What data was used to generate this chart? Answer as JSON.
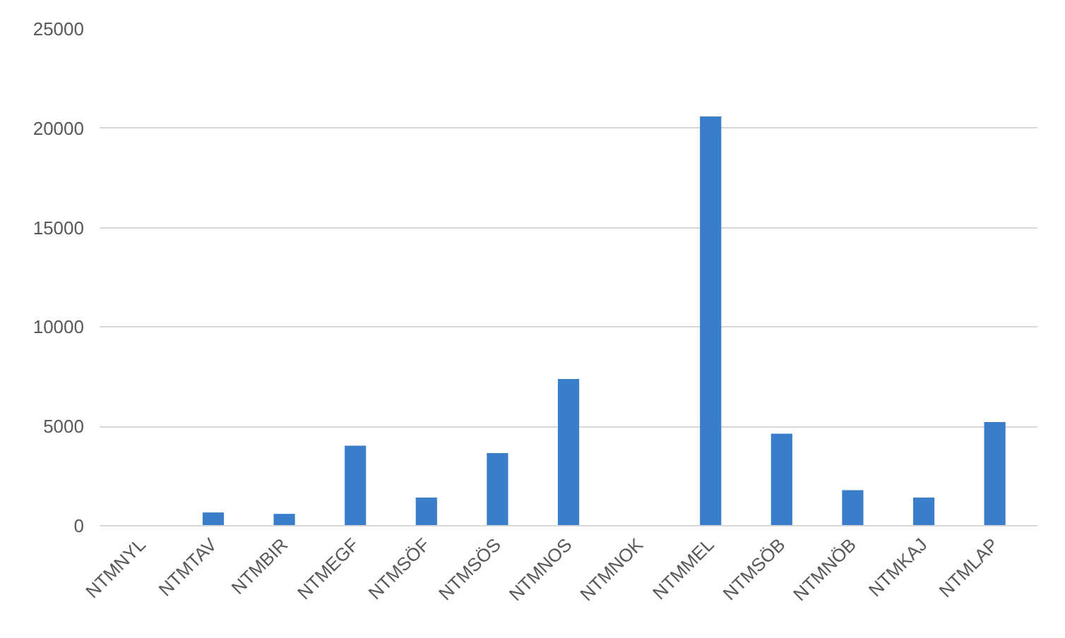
{
  "chart_data": {
    "type": "bar",
    "categories": [
      "NTMNYL",
      "NTMTAV",
      "NTMBIR",
      "NTMEGF",
      "NTMSÖF",
      "NTMSÖS",
      "NTMNOS",
      "NTMNOK",
      "NTMMEL",
      "NTMSÖB",
      "NTMNÖB",
      "NTMKAJ",
      "NTMLAP"
    ],
    "values": [
      0,
      670,
      600,
      4030,
      1420,
      3660,
      7390,
      0,
      20600,
      4630,
      1790,
      1420,
      5220
    ],
    "color": "#3a7dc8",
    "ylim": [
      0,
      25000
    ],
    "yticks": [
      0,
      5000,
      10000,
      15000,
      20000,
      25000
    ],
    "grid": "y"
  }
}
